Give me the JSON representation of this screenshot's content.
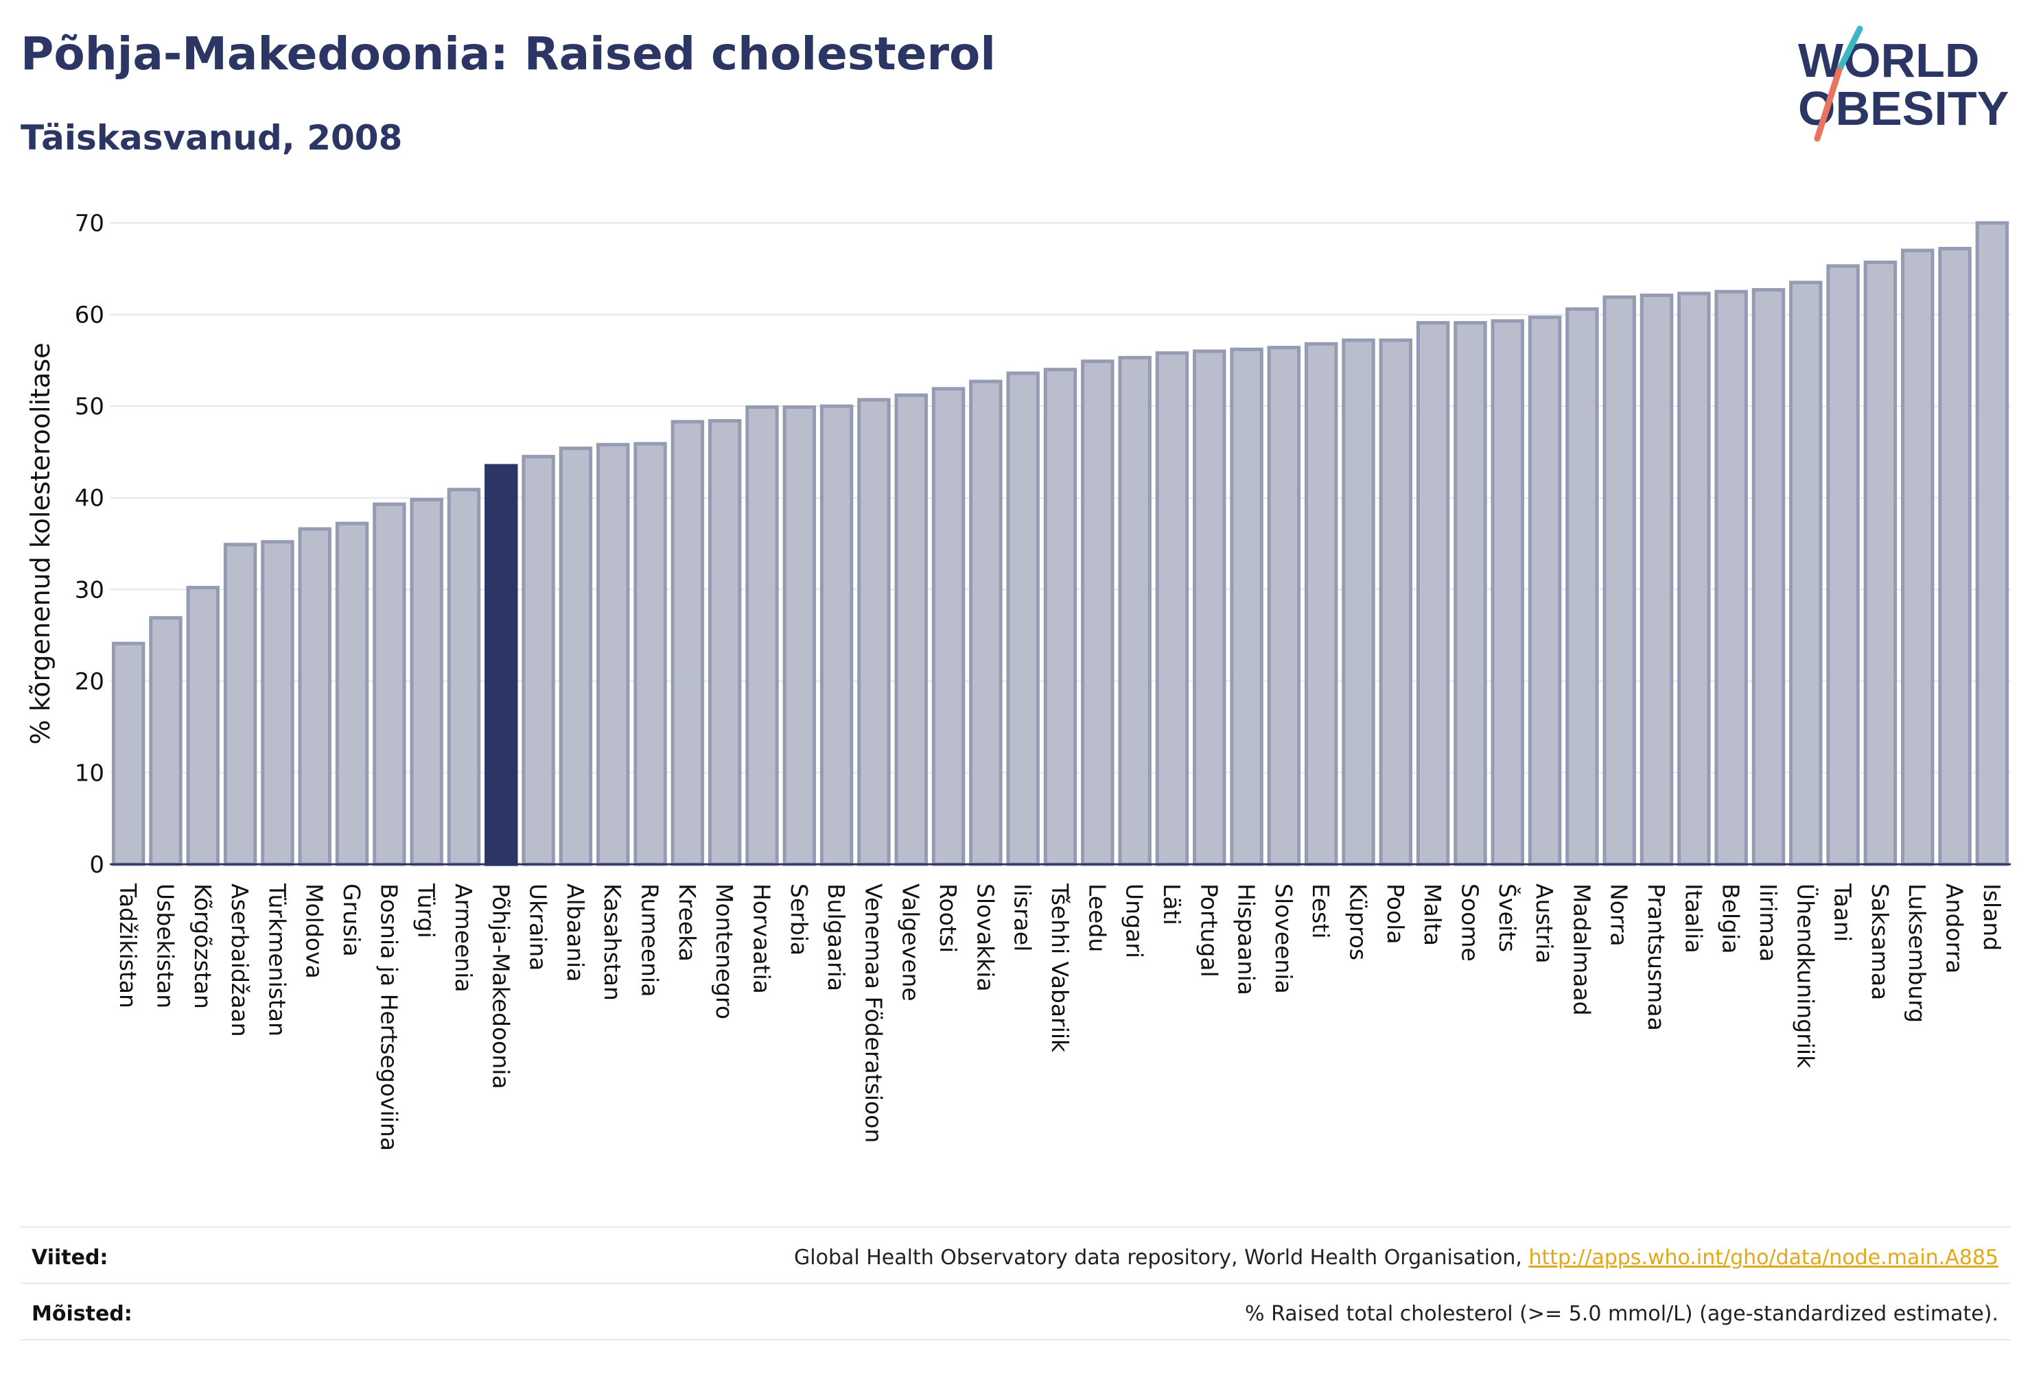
{
  "header": {
    "title": "Põhja-Makedoonia: Raised cholesterol",
    "subtitle": "Täiskasvanud, 2008"
  },
  "logo": {
    "line1": "WORLD",
    "line2": "OBESITY",
    "color": "#2b3664",
    "accent_teal": "#3bb8c3",
    "accent_coral": "#e8735f"
  },
  "footer": {
    "sources_label": "Viited:",
    "sources_text": "Global Health Observatory data repository, World Health Organisation, ",
    "sources_link": "http://apps.who.int/gho/data/node.main.A885",
    "definitions_label": "Mõisted:",
    "definitions_text": "% Raised total cholesterol (>= 5.0 mmol/L) (age-standardized estimate)."
  },
  "colors": {
    "bar": "#b9bdcc",
    "bar_border": "#959bb3",
    "highlight": "#2b3664",
    "grid": "#e6e6ea",
    "axis": "#2b3664",
    "link": "#e3a81a"
  },
  "chart_data": {
    "type": "bar",
    "title": "Põhja-Makedoonia: Raised cholesterol",
    "subtitle": "Täiskasvanud, 2008",
    "xlabel": "",
    "ylabel": "% kõrgenenud kolesteroolitase",
    "ylim": [
      0,
      70
    ],
    "yticks": [
      0,
      10,
      20,
      30,
      40,
      50,
      60,
      70
    ],
    "grid": true,
    "legend": "none",
    "highlight": "Põhja-Makedoonia",
    "categories": [
      "Tadžikistan",
      "Usbekistan",
      "Kõrgõzstan",
      "Aserbaidžaan",
      "Türkmenistan",
      "Moldova",
      "Grusia",
      "Bosnia ja Hertsegoviina",
      "Türgi",
      "Armeenia",
      "Põhja-Makedoonia",
      "Ukraina",
      "Albaania",
      "Kasahstan",
      "Rumeenia",
      "Kreeka",
      "Montenegro",
      "Horvaatia",
      "Serbia",
      "Bulgaaria",
      "Venemaa Föderatsioon",
      "Valgevene",
      "Rootsi",
      "Slovakkia",
      "Iisrael",
      "Tšehhi Vabariik",
      "Leedu",
      "Ungari",
      "Läti",
      "Portugal",
      "Hispaania",
      "Sloveenia",
      "Eesti",
      "Küpros",
      "Poola",
      "Malta",
      "Soome",
      "Šveits",
      "Austria",
      "Madalmaad",
      "Norra",
      "Prantsusmaa",
      "Itaalia",
      "Belgia",
      "Iirimaa",
      "Ühendkuningriik",
      "Taani",
      "Saksamaa",
      "Luksemburg",
      "Andorra",
      "Island"
    ],
    "values": [
      24.1,
      26.9,
      30.2,
      34.9,
      35.2,
      36.6,
      37.2,
      39.3,
      39.8,
      40.9,
      43.5,
      44.5,
      45.4,
      45.8,
      45.9,
      48.3,
      48.4,
      49.9,
      49.9,
      50.0,
      50.7,
      51.2,
      51.9,
      52.7,
      53.6,
      54.0,
      54.9,
      55.3,
      55.8,
      56.0,
      56.2,
      56.4,
      56.8,
      57.2,
      57.2,
      59.1,
      59.1,
      59.3,
      59.7,
      60.6,
      61.9,
      62.1,
      62.3,
      62.5,
      62.7,
      63.5,
      65.3,
      65.7,
      67.0,
      67.2,
      70.0
    ]
  }
}
